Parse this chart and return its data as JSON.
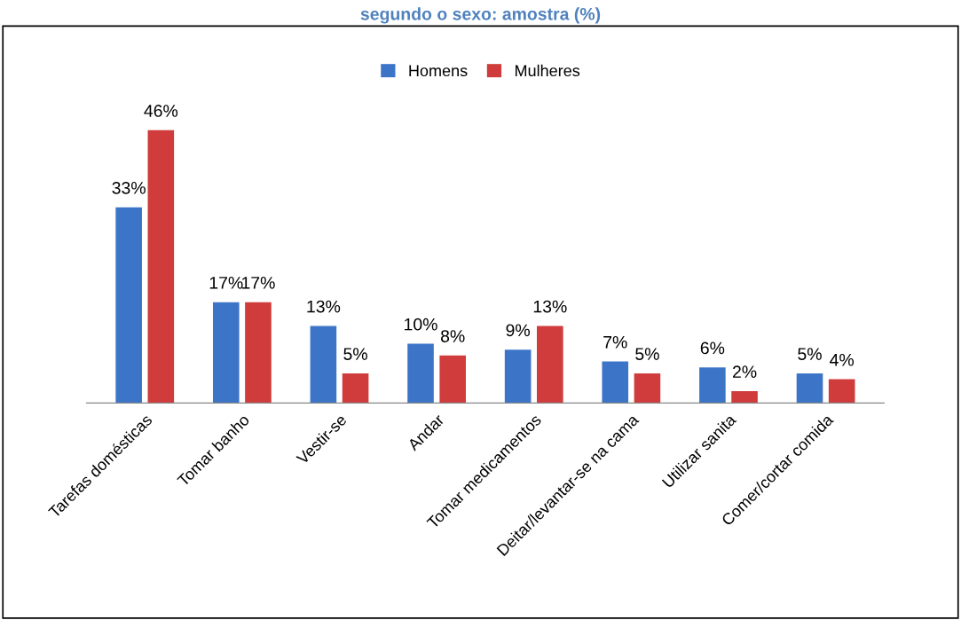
{
  "chart_data": {
    "type": "bar",
    "title": "segundo o sexo: amostra (%)",
    "categories": [
      "Tarefas domésticas",
      "Tomar banho",
      "Vestir-se",
      "Andar",
      "Tomar medicamentos",
      "Deitar/levantar-se na cama",
      "Utilizar sanita",
      "Comer/cortar comida"
    ],
    "series": [
      {
        "name": "Homens",
        "color": "#3c74c8",
        "values": [
          33,
          17,
          13,
          10,
          9,
          7,
          6,
          5
        ],
        "value_labels": [
          "33%",
          "17%",
          "13%",
          "10%",
          "9%",
          "7%",
          "6%",
          "5%"
        ]
      },
      {
        "name": "Mulheres",
        "color": "#d03b3b",
        "values": [
          46,
          17,
          5,
          8,
          13,
          5,
          2,
          4
        ],
        "value_labels": [
          "46%",
          "17%",
          "5%",
          "8%",
          "13%",
          "5%",
          "2%",
          "4%"
        ]
      }
    ],
    "legend": "top",
    "grid": false
  }
}
